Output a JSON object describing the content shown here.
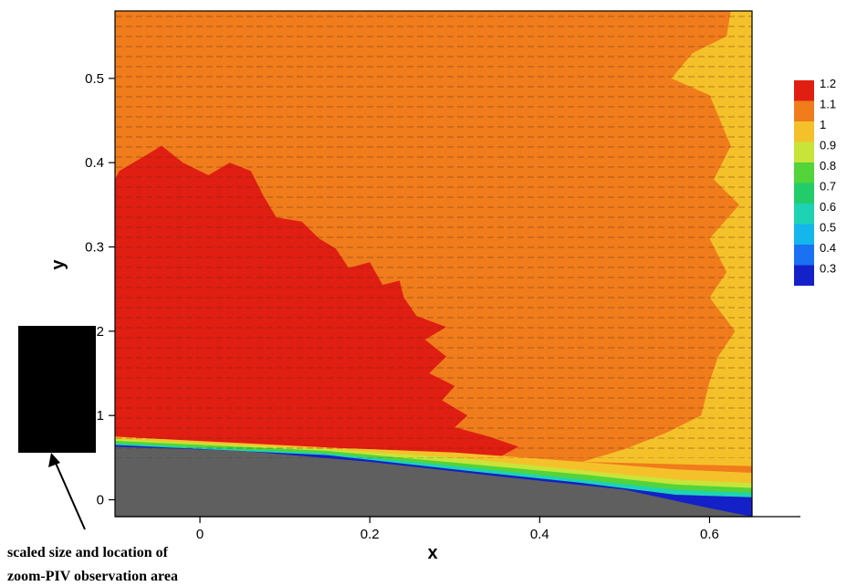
{
  "chart_data": {
    "type": "heatmap",
    "title": "",
    "xlabel": "x",
    "ylabel": "y",
    "xlim": [
      -0.1,
      0.65
    ],
    "ylim": [
      -0.02,
      0.58
    ],
    "xticks": [
      {
        "value": 0,
        "label": "0"
      },
      {
        "value": 0.2,
        "label": "0.2"
      },
      {
        "value": 0.4,
        "label": "0.4"
      },
      {
        "value": 0.6,
        "label": "0.6"
      }
    ],
    "yticks": [
      {
        "value": 0,
        "label": "0"
      },
      {
        "value": 0.1,
        "label": "0.1"
      },
      {
        "value": 0.2,
        "label": "0.2"
      },
      {
        "value": 0.3,
        "label": "0.3"
      },
      {
        "value": 0.4,
        "label": "0.4"
      },
      {
        "value": 0.5,
        "label": "0.5"
      }
    ],
    "legend": {
      "placement": "right",
      "levels": [
        {
          "label": "1.2",
          "color": "#e01e12"
        },
        {
          "label": "1.1",
          "color": "#f07c1c"
        },
        {
          "label": "1",
          "color": "#f5c12a"
        },
        {
          "label": "0.9",
          "color": "#c8e43a"
        },
        {
          "label": "0.8",
          "color": "#52d43a"
        },
        {
          "label": "0.7",
          "color": "#22cc6a"
        },
        {
          "label": "0.6",
          "color": "#1ed2b4"
        },
        {
          "label": "0.5",
          "color": "#14b6ec"
        },
        {
          "label": "0.4",
          "color": "#1a72f2"
        },
        {
          "label": "0.3",
          "color": "#1420c8"
        }
      ]
    },
    "background_level_color": "#f07c1c",
    "regions": [
      {
        "name": "high-velocity-region",
        "color": "#e01e12",
        "points": [
          [
            -0.1,
            0.075
          ],
          [
            0.05,
            0.062
          ],
          [
            0.2,
            0.06
          ],
          [
            0.3,
            0.055
          ],
          [
            0.355,
            0.052
          ],
          [
            0.375,
            0.063
          ],
          [
            0.34,
            0.075
          ],
          [
            0.3,
            0.086
          ],
          [
            0.315,
            0.1
          ],
          [
            0.285,
            0.118
          ],
          [
            0.3,
            0.135
          ],
          [
            0.27,
            0.15
          ],
          [
            0.29,
            0.17
          ],
          [
            0.265,
            0.19
          ],
          [
            0.29,
            0.205
          ],
          [
            0.255,
            0.218
          ],
          [
            0.24,
            0.24
          ],
          [
            0.235,
            0.26
          ],
          [
            0.215,
            0.255
          ],
          [
            0.2,
            0.282
          ],
          [
            0.175,
            0.275
          ],
          [
            0.16,
            0.298
          ],
          [
            0.14,
            0.31
          ],
          [
            0.12,
            0.33
          ],
          [
            0.09,
            0.335
          ],
          [
            0.075,
            0.36
          ],
          [
            0.06,
            0.39
          ],
          [
            0.035,
            0.4
          ],
          [
            0.01,
            0.385
          ],
          [
            -0.02,
            0.4
          ],
          [
            -0.045,
            0.42
          ],
          [
            -0.07,
            0.405
          ],
          [
            -0.095,
            0.39
          ],
          [
            -0.1,
            0.38
          ]
        ]
      },
      {
        "name": "right-edge-region",
        "color": "#f5c12a",
        "points": [
          [
            0.65,
            0.58
          ],
          [
            0.625,
            0.58
          ],
          [
            0.62,
            0.55
          ],
          [
            0.58,
            0.53
          ],
          [
            0.555,
            0.5
          ],
          [
            0.6,
            0.48
          ],
          [
            0.625,
            0.42
          ],
          [
            0.605,
            0.38
          ],
          [
            0.635,
            0.35
          ],
          [
            0.6,
            0.31
          ],
          [
            0.62,
            0.27
          ],
          [
            0.6,
            0.24
          ],
          [
            0.63,
            0.2
          ],
          [
            0.61,
            0.17
          ],
          [
            0.6,
            0.14
          ],
          [
            0.59,
            0.1
          ],
          [
            0.55,
            0.08
          ],
          [
            0.5,
            0.06
          ],
          [
            0.45,
            0.045
          ],
          [
            0.65,
            0.04
          ]
        ]
      },
      {
        "name": "wall-layer-yellow",
        "color": "#f5c12a",
        "points": [
          [
            -0.1,
            0.075
          ],
          [
            0.15,
            0.062
          ],
          [
            0.3,
            0.056
          ],
          [
            0.45,
            0.045
          ],
          [
            0.56,
            0.036
          ],
          [
            0.65,
            0.032
          ],
          [
            0.65,
            0.0
          ],
          [
            -0.1,
            0.0
          ]
        ]
      },
      {
        "name": "wall-layer-lightgreen",
        "color": "#c8e43a",
        "points": [
          [
            -0.1,
            0.072
          ],
          [
            0.15,
            0.06
          ],
          [
            0.3,
            0.05
          ],
          [
            0.45,
            0.035
          ],
          [
            0.56,
            0.024
          ],
          [
            0.65,
            0.02
          ],
          [
            0.65,
            0.0
          ],
          [
            -0.1,
            0.0
          ]
        ]
      },
      {
        "name": "wall-layer-green",
        "color": "#52d43a",
        "points": [
          [
            -0.1,
            0.07
          ],
          [
            0.15,
            0.058
          ],
          [
            0.3,
            0.044
          ],
          [
            0.45,
            0.03
          ],
          [
            0.56,
            0.018
          ],
          [
            0.65,
            0.014
          ],
          [
            0.65,
            0.0
          ],
          [
            -0.1,
            0.0
          ]
        ]
      },
      {
        "name": "wall-layer-cyan",
        "color": "#1ed2b4",
        "points": [
          [
            -0.1,
            0.067
          ],
          [
            0.15,
            0.055
          ],
          [
            0.3,
            0.04
          ],
          [
            0.45,
            0.024
          ],
          [
            0.56,
            0.012
          ],
          [
            0.65,
            0.008
          ],
          [
            0.65,
            0.0
          ],
          [
            -0.1,
            0.0
          ]
        ]
      },
      {
        "name": "wall-layer-blue",
        "color": "#1420c8",
        "points": [
          [
            -0.1,
            0.065
          ],
          [
            0.15,
            0.053
          ],
          [
            0.3,
            0.036
          ],
          [
            0.45,
            0.02
          ],
          [
            0.56,
            0.006
          ],
          [
            0.65,
            0.003
          ],
          [
            0.65,
            -0.02
          ],
          [
            -0.1,
            -0.02
          ]
        ]
      },
      {
        "name": "solid-wall",
        "color": "#5f5f5f",
        "points": [
          [
            -0.1,
            0.063
          ],
          [
            0.05,
            0.058
          ],
          [
            0.2,
            0.045
          ],
          [
            0.35,
            0.028
          ],
          [
            0.5,
            0.012
          ],
          [
            0.6,
            -0.01
          ],
          [
            0.65,
            -0.02
          ],
          [
            -0.1,
            -0.02
          ]
        ]
      }
    ],
    "annotation": {
      "lines": [
        "scaled size and location of",
        "zoom-PIV observation area"
      ]
    }
  }
}
